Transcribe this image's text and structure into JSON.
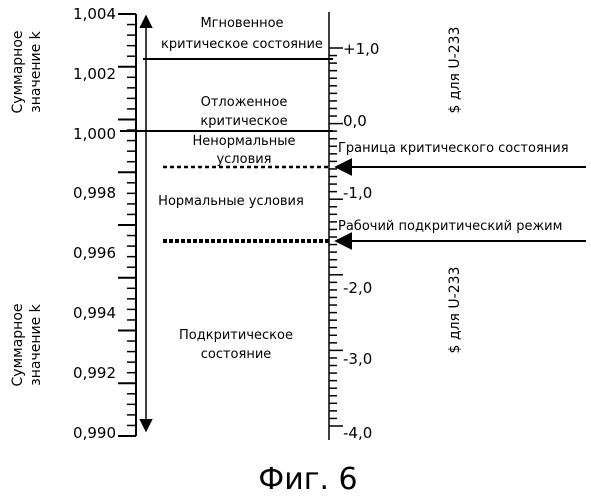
{
  "left_axis_label": {
    "line1": "Суммарное",
    "line2": "значение k"
  },
  "left_ticks": [
    "1,004",
    "1,002",
    "1,000",
    "0,998",
    "0,996",
    "0,994",
    "0,992",
    "0,990"
  ],
  "zones": {
    "prompt": {
      "line1": "Мгновенное",
      "line2": "критическое состояние"
    },
    "delayed": {
      "line1": "Отложенное",
      "line2": "критическое"
    },
    "abnormal": {
      "line1": "Ненормальные",
      "line2": "условия"
    },
    "normal": "Нормальные условия",
    "subcritical": {
      "line1": "Подкритическое",
      "line2": "состояние"
    }
  },
  "right_ticks": [
    "+1,0",
    "0,0",
    "-1,0",
    "-2,0",
    "-3,0",
    "-4,0"
  ],
  "right_axis_label": "$ для U-233",
  "arrows": {
    "criticality_boundary": "Граница критического состояния",
    "working_mode": "Рабочий подкритический режим"
  },
  "caption": "Фиг. 6"
}
